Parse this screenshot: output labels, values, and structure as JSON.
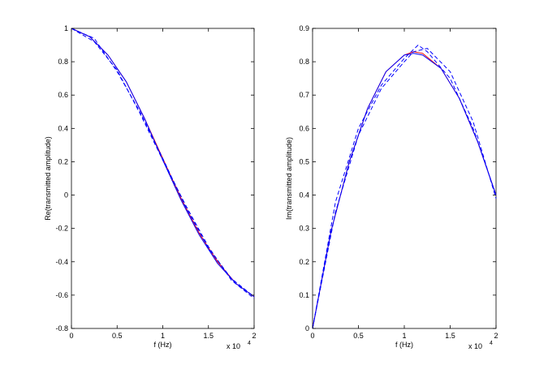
{
  "chart_data": [
    {
      "type": "line",
      "xlabel": "f (Hz)",
      "ylabel": "Re(transmitted amplitude)",
      "x_scale_label": "x 10",
      "x_scale_power": "4",
      "xlim": [
        0,
        20000
      ],
      "xticks": [
        0,
        {
          "value": 5000,
          "label": "0.5"
        },
        {
          "value": 10000,
          "label": "1"
        },
        {
          "value": 15000,
          "label": "1.5"
        },
        {
          "value": 20000,
          "label": "2"
        }
      ],
      "ylim": [
        -0.8,
        1
      ],
      "yticks": [
        -0.8,
        -0.6,
        -0.4,
        -0.2,
        0,
        0.2,
        0.4,
        0.6,
        0.8,
        1
      ],
      "series": [
        {
          "color": "#ff0000",
          "style": "solid",
          "x": [
            0,
            2000,
            4000,
            6000,
            8000,
            10000,
            12000,
            14000,
            16000,
            18000,
            20000
          ],
          "values": [
            1.0,
            0.95,
            0.84,
            0.68,
            0.46,
            0.22,
            -0.02,
            -0.23,
            -0.4,
            -0.53,
            -0.61
          ]
        },
        {
          "color": "#0000ff",
          "style": "solid",
          "x": [
            0,
            2000,
            4000,
            6000,
            8000,
            10000,
            12000,
            14000,
            16000,
            18000,
            20000
          ],
          "values": [
            1.0,
            0.95,
            0.84,
            0.68,
            0.46,
            0.21,
            -0.03,
            -0.24,
            -0.41,
            -0.53,
            -0.61
          ]
        },
        {
          "color": "#0000ff",
          "style": "dashed",
          "x": [
            0,
            2500,
            5000,
            7500,
            10000,
            12500,
            15000,
            17500,
            20000
          ],
          "values": [
            1.0,
            0.94,
            0.74,
            0.5,
            0.22,
            -0.07,
            -0.32,
            -0.5,
            -0.61
          ]
        },
        {
          "color": "#0000ff",
          "style": "dashed",
          "x": [
            0,
            2500,
            5000,
            7500,
            10000,
            12500,
            15000,
            17500,
            20000
          ],
          "values": [
            1.0,
            0.92,
            0.75,
            0.49,
            0.21,
            -0.06,
            -0.31,
            -0.51,
            -0.62
          ]
        }
      ]
    },
    {
      "type": "line",
      "xlabel": "f (Hz)",
      "ylabel": "Im(transmitted amplitude)",
      "x_scale_label": "x 10",
      "x_scale_power": "4",
      "xlim": [
        0,
        20000
      ],
      "xticks": [
        0,
        {
          "value": 5000,
          "label": "0.5"
        },
        {
          "value": 10000,
          "label": "1"
        },
        {
          "value": 15000,
          "label": "1.5"
        },
        {
          "value": 20000,
          "label": "2"
        }
      ],
      "ylim": [
        0,
        0.9
      ],
      "yticks": [
        0,
        0.1,
        0.2,
        0.3,
        0.4,
        0.5,
        0.6,
        0.7,
        0.8,
        0.9
      ],
      "series": [
        {
          "color": "#ff0000",
          "style": "solid",
          "x": [
            0,
            2000,
            4000,
            6000,
            8000,
            10000,
            11000,
            12000,
            14000,
            16000,
            18000,
            20000
          ],
          "values": [
            0,
            0.29,
            0.5,
            0.66,
            0.77,
            0.82,
            0.83,
            0.825,
            0.78,
            0.69,
            0.56,
            0.4
          ]
        },
        {
          "color": "#0000ff",
          "style": "solid",
          "x": [
            0,
            2000,
            4000,
            6000,
            8000,
            10000,
            11000,
            12000,
            14000,
            16000,
            18000,
            20000
          ],
          "values": [
            0,
            0.29,
            0.5,
            0.66,
            0.77,
            0.82,
            0.825,
            0.82,
            0.78,
            0.69,
            0.56,
            0.4
          ]
        },
        {
          "color": "#0000ff",
          "style": "dashed",
          "x": [
            0,
            2500,
            5000,
            7500,
            10000,
            11500,
            12500,
            15000,
            17500,
            20000
          ],
          "values": [
            0,
            0.38,
            0.6,
            0.73,
            0.81,
            0.85,
            0.83,
            0.75,
            0.6,
            0.4
          ]
        },
        {
          "color": "#0000ff",
          "style": "dashed",
          "x": [
            0,
            2500,
            5000,
            7500,
            10000,
            11000,
            12500,
            15000,
            17500,
            20000
          ],
          "values": [
            0,
            0.35,
            0.58,
            0.72,
            0.8,
            0.83,
            0.84,
            0.77,
            0.62,
            0.39
          ]
        }
      ]
    }
  ]
}
